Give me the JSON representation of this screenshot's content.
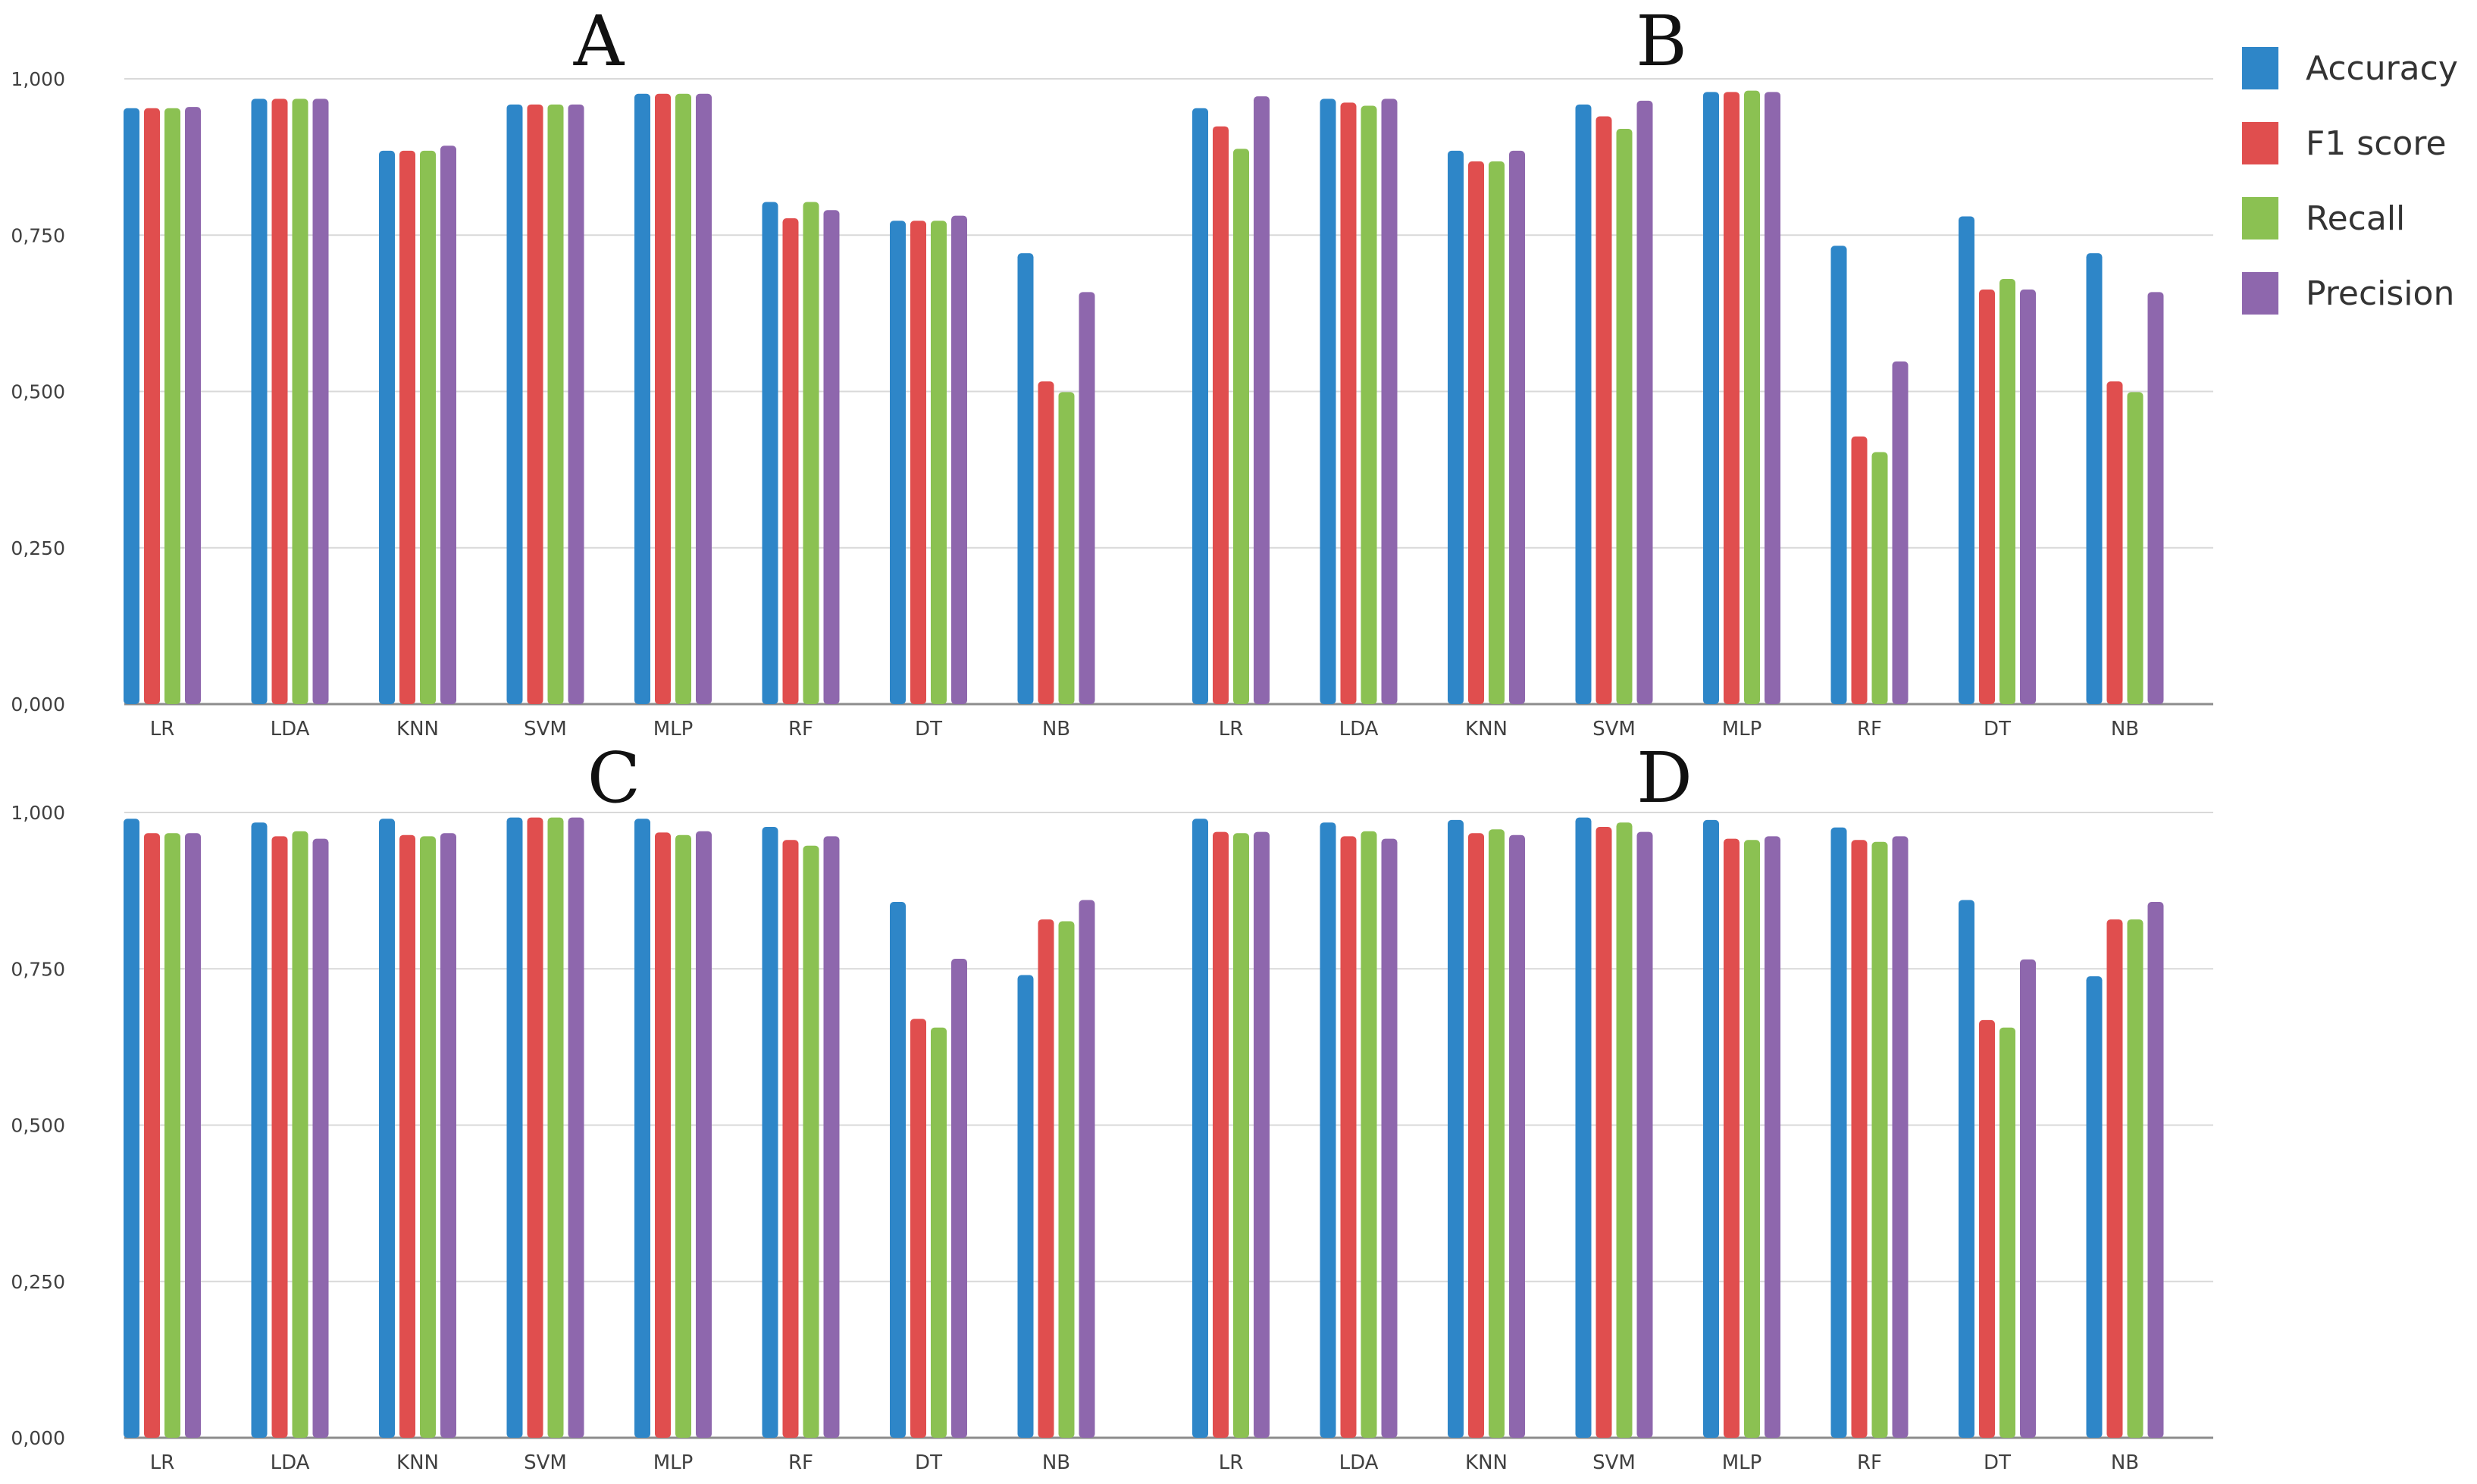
{
  "colors": {
    "accuracy": "#2e86c8",
    "f1": "#e04e4e",
    "recall": "#8bc152",
    "precision": "#8e67ad"
  },
  "legend": {
    "entries": [
      {
        "label": "Accuracy",
        "color": "#2e86c8"
      },
      {
        "label": "F1 score",
        "color": "#e04e4e"
      },
      {
        "label": "Recall",
        "color": "#8bc152"
      },
      {
        "label": "Precision",
        "color": "#8e67ad"
      }
    ]
  },
  "chart_data": [
    {
      "type": "bar",
      "panel": "A",
      "categories": [
        "LR",
        "LDA",
        "KNN",
        "SVM",
        "MLP",
        "RF",
        "DT",
        "NB"
      ],
      "ylim": [
        0,
        1
      ],
      "yticks": [
        "0,000",
        "0,250",
        "0,500",
        "0,750",
        "1,000"
      ],
      "series": [
        {
          "name": "Accuracy",
          "values": [
            0.953,
            0.968,
            0.885,
            0.959,
            0.976,
            0.803,
            0.773,
            0.721
          ]
        },
        {
          "name": "F1 score",
          "values": [
            0.953,
            0.968,
            0.885,
            0.959,
            0.976,
            0.777,
            0.773,
            0.516
          ]
        },
        {
          "name": "Recall",
          "values": [
            0.953,
            0.968,
            0.885,
            0.959,
            0.976,
            0.803,
            0.773,
            0.499
          ]
        },
        {
          "name": "Precision",
          "values": [
            0.955,
            0.968,
            0.893,
            0.959,
            0.976,
            0.79,
            0.781,
            0.659
          ]
        }
      ]
    },
    {
      "type": "bar",
      "panel": "B",
      "categories": [
        "LR",
        "LDA",
        "KNN",
        "SVM",
        "MLP",
        "RF",
        "DT",
        "NB"
      ],
      "ylim": [
        0,
        1
      ],
      "yticks": [
        "0,000",
        "0,250",
        "0,500",
        "0,750",
        "1,000"
      ],
      "series": [
        {
          "name": "Accuracy",
          "values": [
            0.953,
            0.968,
            0.885,
            0.959,
            0.979,
            0.733,
            0.78,
            0.721
          ]
        },
        {
          "name": "F1 score",
          "values": [
            0.924,
            0.962,
            0.868,
            0.94,
            0.979,
            0.428,
            0.663,
            0.516
          ]
        },
        {
          "name": "Recall",
          "values": [
            0.888,
            0.957,
            0.868,
            0.92,
            0.981,
            0.403,
            0.68,
            0.499
          ]
        },
        {
          "name": "Precision",
          "values": [
            0.972,
            0.968,
            0.885,
            0.965,
            0.979,
            0.548,
            0.663,
            0.659
          ]
        }
      ]
    },
    {
      "type": "bar",
      "panel": "C",
      "categories": [
        "LR",
        "LDA",
        "KNN",
        "SVM",
        "MLP",
        "RF",
        "DT",
        "NB"
      ],
      "ylim": [
        0,
        1
      ],
      "yticks": [
        "0,000",
        "0,250",
        "0,500",
        "0,750",
        "1,000"
      ],
      "series": [
        {
          "name": "Accuracy",
          "values": [
            0.99,
            0.984,
            0.99,
            0.992,
            0.99,
            0.977,
            0.857,
            0.74
          ]
        },
        {
          "name": "F1 score",
          "values": [
            0.967,
            0.962,
            0.964,
            0.992,
            0.968,
            0.956,
            0.67,
            0.829
          ]
        },
        {
          "name": "Recall",
          "values": [
            0.967,
            0.97,
            0.962,
            0.992,
            0.964,
            0.947,
            0.656,
            0.826
          ]
        },
        {
          "name": "Precision",
          "values": [
            0.967,
            0.958,
            0.967,
            0.992,
            0.97,
            0.962,
            0.766,
            0.86
          ]
        }
      ]
    },
    {
      "type": "bar",
      "panel": "D",
      "categories": [
        "LR",
        "LDA",
        "KNN",
        "SVM",
        "MLP",
        "RF",
        "DT",
        "NB"
      ],
      "ylim": [
        0,
        1
      ],
      "yticks": [
        "0,000",
        "0,250",
        "0,500",
        "0,750",
        "1,000"
      ],
      "series": [
        {
          "name": "Accuracy",
          "values": [
            0.99,
            0.984,
            0.988,
            0.992,
            0.988,
            0.976,
            0.86,
            0.738
          ]
        },
        {
          "name": "F1 score",
          "values": [
            0.969,
            0.962,
            0.967,
            0.977,
            0.958,
            0.956,
            0.668,
            0.829
          ]
        },
        {
          "name": "Recall",
          "values": [
            0.967,
            0.97,
            0.973,
            0.984,
            0.956,
            0.953,
            0.656,
            0.829
          ]
        },
        {
          "name": "Precision",
          "values": [
            0.969,
            0.958,
            0.964,
            0.969,
            0.962,
            0.962,
            0.765,
            0.857
          ]
        }
      ]
    }
  ]
}
